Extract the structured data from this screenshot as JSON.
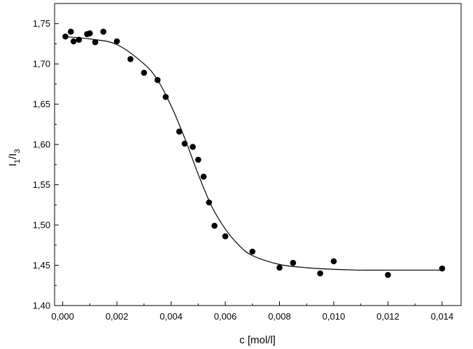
{
  "chart_data": {
    "type": "scatter",
    "title": "",
    "xlabel": "c [mol/l]",
    "ylabel": {
      "base1": "I",
      "sub1": "1",
      "slash": "/",
      "base2": "I",
      "sub2": "3"
    },
    "xlim": [
      -0.0003,
      0.0147
    ],
    "ylim": [
      1.4,
      1.775
    ],
    "x_ticks": [
      0.0,
      0.002,
      0.004,
      0.006,
      0.008,
      0.01,
      0.012,
      0.014
    ],
    "x_tick_labels": [
      "0,000",
      "0,002",
      "0,004",
      "0,006",
      "0,008",
      "0,010",
      "0,012",
      "0,014"
    ],
    "y_ticks": [
      1.4,
      1.45,
      1.5,
      1.55,
      1.6,
      1.65,
      1.7,
      1.75
    ],
    "y_tick_labels": [
      "1,40",
      "1,45",
      "1,50",
      "1,55",
      "1,60",
      "1,65",
      "1,70",
      "1,75"
    ],
    "grid": false,
    "colors": {
      "points": "#000000",
      "fit_line": "#000000",
      "axes": "#000000"
    },
    "series": [
      {
        "kind": "points",
        "x": [
          0.0001,
          0.0003,
          0.0004,
          0.0006,
          0.0009,
          0.001,
          0.0012,
          0.0015,
          0.002,
          0.0025,
          0.003,
          0.0035,
          0.0038,
          0.0043,
          0.0045,
          0.0048,
          0.005,
          0.0052,
          0.0054,
          0.0056,
          0.006,
          0.007,
          0.008,
          0.0085,
          0.0095,
          0.01,
          0.012,
          0.014
        ],
        "y": [
          1.734,
          1.74,
          1.728,
          1.73,
          1.737,
          1.738,
          1.727,
          1.74,
          1.728,
          1.706,
          1.689,
          1.68,
          1.659,
          1.616,
          1.601,
          1.597,
          1.581,
          1.56,
          1.528,
          1.499,
          1.486,
          1.467,
          1.447,
          1.453,
          1.44,
          1.455,
          1.438,
          1.446
        ]
      },
      {
        "kind": "fit",
        "x": [
          0.0,
          0.001,
          0.002,
          0.003,
          0.0035,
          0.004,
          0.0045,
          0.005,
          0.0055,
          0.006,
          0.0065,
          0.007,
          0.008,
          0.009,
          0.01,
          0.011,
          0.012,
          0.013,
          0.014
        ],
        "y": [
          1.734,
          1.731,
          1.724,
          1.7,
          1.68,
          1.648,
          1.608,
          1.563,
          1.523,
          1.495,
          1.475,
          1.462,
          1.451,
          1.447,
          1.445,
          1.444,
          1.444,
          1.444,
          1.444
        ]
      }
    ]
  }
}
